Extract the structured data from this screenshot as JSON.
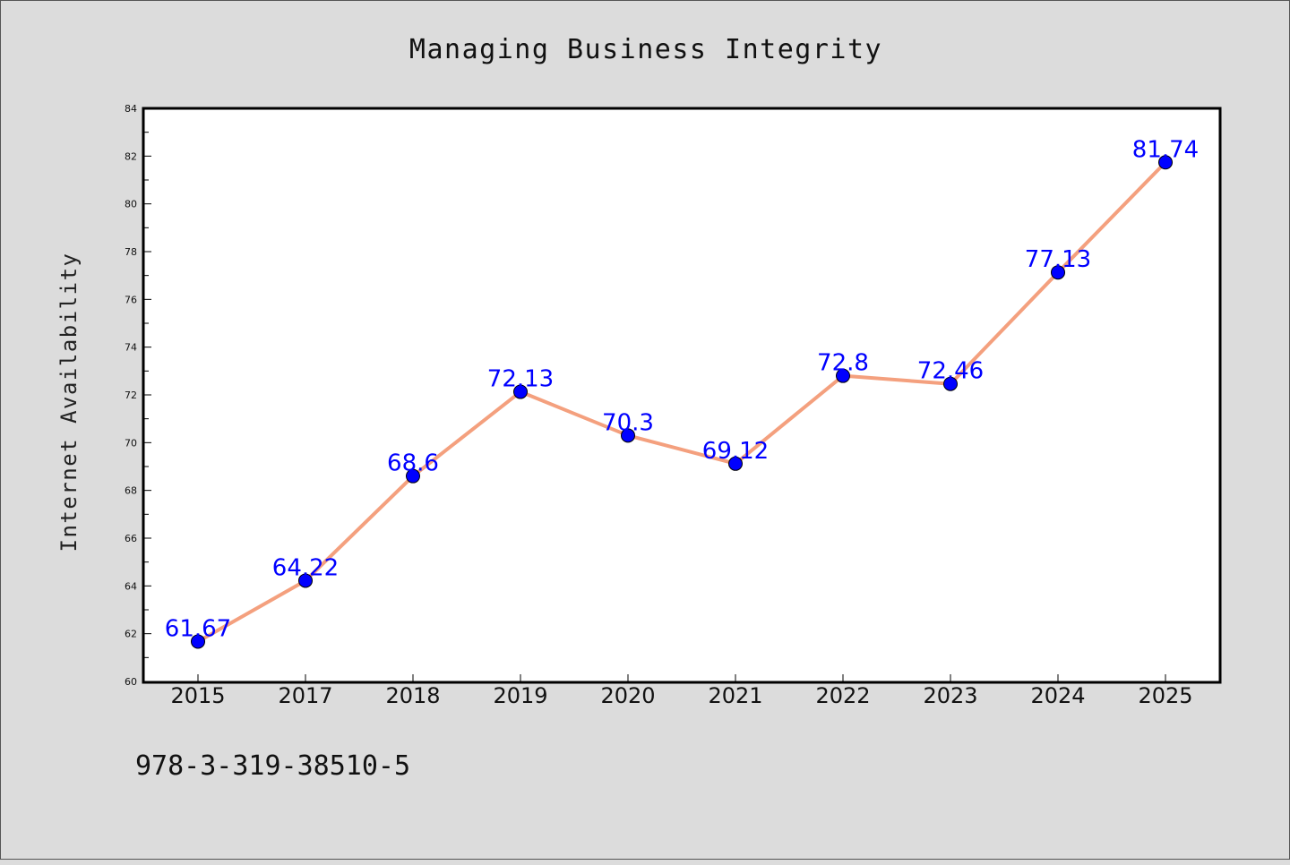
{
  "colors": {
    "background": "#dcdcdc",
    "plot_background": "#ffffff",
    "line": "#f4a07e",
    "marker": "#0000ff",
    "label": "#0000ff"
  },
  "footer": {
    "text": "978-3-319-38510-5"
  },
  "chart_data": {
    "type": "line",
    "title": "Managing Business Integrity",
    "xlabel": "",
    "ylabel": "Internet Availability",
    "categories": [
      "2015",
      "2017",
      "2018",
      "2019",
      "2020",
      "2021",
      "2022",
      "2023",
      "2024",
      "2025"
    ],
    "series": [
      {
        "values": [
          61.67,
          64.22,
          68.6,
          72.13,
          70.3,
          69.12,
          72.8,
          72.46,
          77.13,
          81.74
        ],
        "labels": [
          "61.67",
          "64.22",
          "68.6",
          "72.13",
          "70.3",
          "69.12",
          "72.8",
          "72.46",
          "77.13",
          "81.74"
        ]
      }
    ],
    "ylim": [
      60,
      84
    ],
    "yticks": [
      "60",
      "62",
      "64",
      "66",
      "68",
      "70",
      "72",
      "74",
      "76",
      "78",
      "80",
      "82",
      "84"
    ],
    "grid": false,
    "legend": "none"
  }
}
